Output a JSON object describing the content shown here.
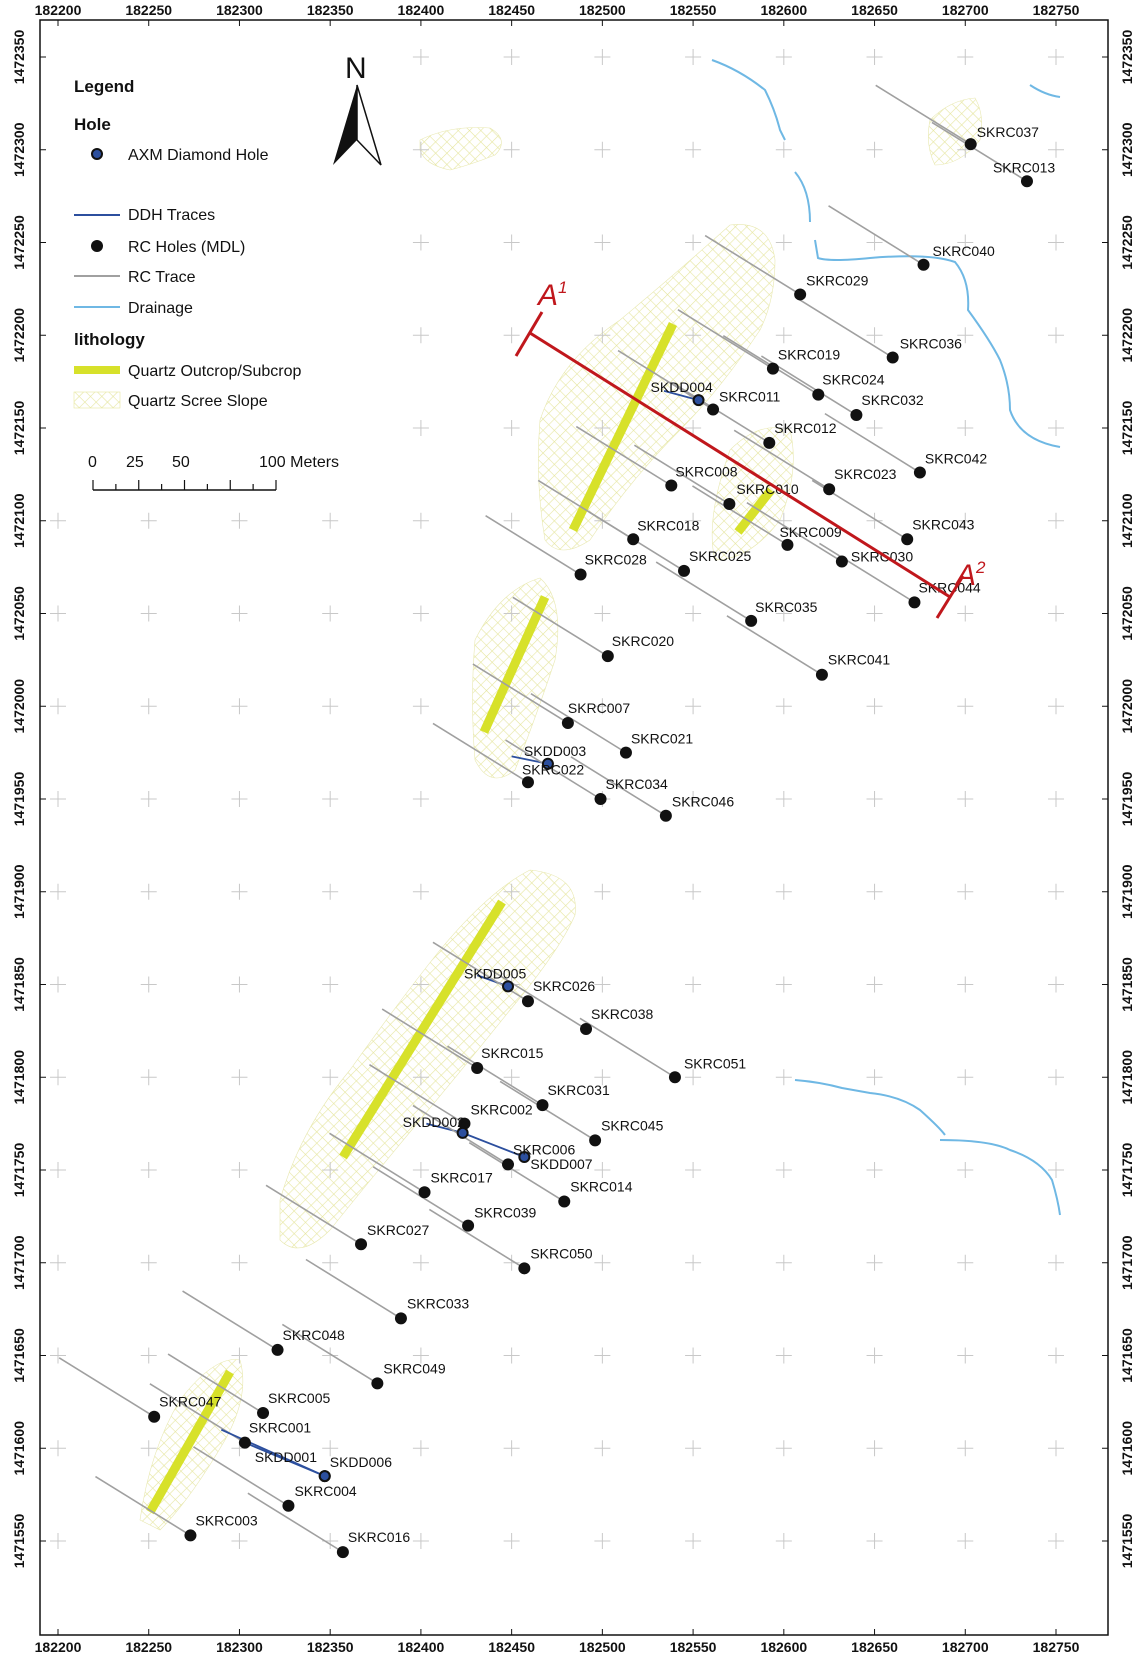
{
  "colors": {
    "rc_trace": "#a0a0a0",
    "ddh_trace": "#2c4f9e",
    "drainage": "#6fb8e4",
    "quartz_outcrop": "#d7e12a",
    "quartz_scree": "#e6e6a0",
    "section_line": "#c0171c",
    "hole_fill": "#111111",
    "frame": "#111111"
  },
  "axes": {
    "x_ticks": [
      "182200",
      "182250",
      "182300",
      "182350",
      "182400",
      "182450",
      "182500",
      "182550",
      "182600",
      "182650",
      "182700",
      "182750"
    ],
    "y_ticks": [
      "1472350",
      "1472300",
      "1472250",
      "1472200",
      "1472150",
      "1472100",
      "1472050",
      "1472000",
      "1471950",
      "1471900",
      "1471850",
      "1471800",
      "1471750",
      "1471700",
      "1471650",
      "1471600",
      "1471550"
    ]
  },
  "legend": {
    "title": "Legend",
    "hole_heading": "Hole",
    "axm_diamond_hole": "AXM Diamond Hole",
    "ddh_traces": "DDH Traces",
    "rc_holes": "RC Holes (MDL)",
    "rc_trace": "RC Trace",
    "drainage": "Drainage",
    "lithology_heading": "lithology",
    "quartz_outcrop": "Quartz Outcrop/Subcrop",
    "quartz_scree": "Quartz Scree Slope"
  },
  "scale_bar": {
    "labels": [
      "0",
      "25",
      "50",
      "100 Meters"
    ]
  },
  "north_arrow": {
    "label": "N",
    "icon": "north-arrow-icon"
  },
  "section": {
    "start_label": "A",
    "start_sup": "1",
    "end_label": "A",
    "end_sup": "2"
  },
  "holes": [
    {
      "id": "SKRC037",
      "type": "rc",
      "x": 182703,
      "y": 1472303,
      "dx": 6,
      "dy": -7
    },
    {
      "id": "SKRC013",
      "type": "rc",
      "x": 182734,
      "y": 1472283,
      "dx": -34,
      "dy": -9
    },
    {
      "id": "SKRC040",
      "type": "rc",
      "x": 182677,
      "y": 1472238,
      "dx": 9,
      "dy": -9
    },
    {
      "id": "SKRC029",
      "type": "rc",
      "x": 182609,
      "y": 1472222,
      "dx": 6,
      "dy": -9
    },
    {
      "id": "SKRC036",
      "type": "rc",
      "x": 182660,
      "y": 1472188,
      "dx": 7,
      "dy": -9
    },
    {
      "id": "SKRC019",
      "type": "rc",
      "x": 182594,
      "y": 1472182,
      "dx": 5,
      "dy": -9
    },
    {
      "id": "SKRC024",
      "type": "rc",
      "x": 182619,
      "y": 1472168,
      "dx": 4,
      "dy": -10
    },
    {
      "id": "SKRC032",
      "type": "rc",
      "x": 182640,
      "y": 1472157,
      "dx": 5,
      "dy": -10
    },
    {
      "id": "SKDD004",
      "type": "dd",
      "x": 182553,
      "y": 1472165,
      "dx": -48,
      "dy": -8,
      "tx": 182534,
      "ty": 1472170
    },
    {
      "id": "SKRC011",
      "type": "rc",
      "x": 182561,
      "y": 1472160,
      "dx": 6,
      "dy": -8
    },
    {
      "id": "SKRC012",
      "type": "rc",
      "x": 182592,
      "y": 1472142,
      "dx": 5,
      "dy": -10
    },
    {
      "id": "SKRC042",
      "type": "rc",
      "x": 182675,
      "y": 1472126,
      "dx": 5,
      "dy": -9
    },
    {
      "id": "SKRC008",
      "type": "rc",
      "x": 182538,
      "y": 1472119,
      "dx": 4,
      "dy": -9
    },
    {
      "id": "SKRC010",
      "type": "rc",
      "x": 182570,
      "y": 1472109,
      "dx": 7,
      "dy": -10
    },
    {
      "id": "SKRC023",
      "type": "rc",
      "x": 182625,
      "y": 1472117,
      "dx": 5,
      "dy": -10
    },
    {
      "id": "SKRC018",
      "type": "rc",
      "x": 182517,
      "y": 1472090,
      "dx": 4,
      "dy": -9
    },
    {
      "id": "SKRC009",
      "type": "rc",
      "x": 182602,
      "y": 1472087,
      "dx": -8,
      "dy": -8
    },
    {
      "id": "SKRC043",
      "type": "rc",
      "x": 182668,
      "y": 1472090,
      "dx": 5,
      "dy": -10
    },
    {
      "id": "SKRC030",
      "type": "rc",
      "x": 182632,
      "y": 1472078,
      "dx": 9,
      "dy": 0
    },
    {
      "id": "SKRC028",
      "type": "rc",
      "x": 182488,
      "y": 1472071,
      "dx": 4,
      "dy": -10
    },
    {
      "id": "SKRC025",
      "type": "rc",
      "x": 182545,
      "y": 1472073,
      "dx": 5,
      "dy": -10
    },
    {
      "id": "SKRC044",
      "type": "rc",
      "x": 182672,
      "y": 1472056,
      "dx": 4,
      "dy": -10
    },
    {
      "id": "SKRC035",
      "type": "rc",
      "x": 182582,
      "y": 1472046,
      "dx": 4,
      "dy": -9
    },
    {
      "id": "SKRC020",
      "type": "rc",
      "x": 182503,
      "y": 1472027,
      "dx": 4,
      "dy": -10
    },
    {
      "id": "SKRC041",
      "type": "rc",
      "x": 182621,
      "y": 1472017,
      "dx": 6,
      "dy": -10
    },
    {
      "id": "SKRC007",
      "type": "rc",
      "x": 182481,
      "y": 1471991,
      "dx": 0,
      "dy": -10
    },
    {
      "id": "SKRC021",
      "type": "rc",
      "x": 182513,
      "y": 1471975,
      "dx": 5,
      "dy": -9
    },
    {
      "id": "SKDD003",
      "type": "dd",
      "x": 182470,
      "y": 1471969,
      "dx": -24,
      "dy": -8,
      "tx": 182450,
      "ty": 1471973
    },
    {
      "id": "SKRC022",
      "type": "rc",
      "x": 182459,
      "y": 1471959,
      "dx": -6,
      "dy": -8
    },
    {
      "id": "SKRC034",
      "type": "rc",
      "x": 182499,
      "y": 1471950,
      "dx": 5,
      "dy": -10
    },
    {
      "id": "SKRC046",
      "type": "rc",
      "x": 182535,
      "y": 1471941,
      "dx": 6,
      "dy": -9
    },
    {
      "id": "SKDD005",
      "type": "dd",
      "x": 182448,
      "y": 1471849,
      "dx": -44,
      "dy": -8,
      "tx": 182431,
      "ty": 1471855
    },
    {
      "id": "SKRC026",
      "type": "rc",
      "x": 182459,
      "y": 1471841,
      "dx": 5,
      "dy": -10
    },
    {
      "id": "SKRC038",
      "type": "rc",
      "x": 182491,
      "y": 1471826,
      "dx": 5,
      "dy": -10
    },
    {
      "id": "SKRC015",
      "type": "rc",
      "x": 182431,
      "y": 1471805,
      "dx": 4,
      "dy": -10
    },
    {
      "id": "SKRC051",
      "type": "rc",
      "x": 182540,
      "y": 1471800,
      "dx": 9,
      "dy": -9
    },
    {
      "id": "SKRC031",
      "type": "rc",
      "x": 182467,
      "y": 1471785,
      "dx": 5,
      "dy": -10
    },
    {
      "id": "SKRC002",
      "type": "rc",
      "x": 182424,
      "y": 1471775,
      "dx": 6,
      "dy": -9
    },
    {
      "id": "SKDD002",
      "type": "dd",
      "x": 182423,
      "y": 1471770,
      "dx": -60,
      "dy": -6,
      "tx": 182403,
      "ty": 1471775
    },
    {
      "id": "SKRC045",
      "type": "rc",
      "x": 182496,
      "y": 1471766,
      "dx": 6,
      "dy": -10
    },
    {
      "id": "SKDD007",
      "type": "dd",
      "x": 182457,
      "y": 1471757,
      "dx": 6,
      "dy": 12,
      "tx": 182423,
      "ty": 1471770
    },
    {
      "id": "SKRC006",
      "type": "rc",
      "x": 182448,
      "y": 1471753,
      "dx": 5,
      "dy": -10
    },
    {
      "id": "SKRC017",
      "type": "rc",
      "x": 182402,
      "y": 1471738,
      "dx": 6,
      "dy": -10
    },
    {
      "id": "SKRC014",
      "type": "rc",
      "x": 182479,
      "y": 1471733,
      "dx": 6,
      "dy": -10
    },
    {
      "id": "SKRC039",
      "type": "rc",
      "x": 182426,
      "y": 1471720,
      "dx": 6,
      "dy": -8
    },
    {
      "id": "SKRC027",
      "type": "rc",
      "x": 182367,
      "y": 1471710,
      "dx": 6,
      "dy": -9
    },
    {
      "id": "SKRC050",
      "type": "rc",
      "x": 182457,
      "y": 1471697,
      "dx": 6,
      "dy": -10
    },
    {
      "id": "SKRC033",
      "type": "rc",
      "x": 182389,
      "y": 1471670,
      "dx": 6,
      "dy": -10
    },
    {
      "id": "SKRC048",
      "type": "rc",
      "x": 182321,
      "y": 1471653,
      "dx": 5,
      "dy": -10
    },
    {
      "id": "SKRC049",
      "type": "rc",
      "x": 182376,
      "y": 1471635,
      "dx": 6,
      "dy": -10
    },
    {
      "id": "SKRC047",
      "type": "rc",
      "x": 182253,
      "y": 1471617,
      "dx": 5,
      "dy": -10
    },
    {
      "id": "SKRC005",
      "type": "rc",
      "x": 182313,
      "y": 1471619,
      "dx": 5,
      "dy": -10
    },
    {
      "id": "SKRC001",
      "type": "rc",
      "x": 182303,
      "y": 1471603,
      "dx": 4,
      "dy": -10
    },
    {
      "id": "SKDD001",
      "type": "dd",
      "x": 182347,
      "y": 1471585,
      "dx": -70,
      "dy": -14,
      "tx": 182290,
      "ty": 1471610
    },
    {
      "id": "SKDD006",
      "type": "dd",
      "x": 182347,
      "y": 1471585,
      "dx": 5,
      "dy": -9,
      "tx": 182303,
      "ty": 1471603
    },
    {
      "id": "SKRC004",
      "type": "rc",
      "x": 182327,
      "y": 1471569,
      "dx": 6,
      "dy": -10
    },
    {
      "id": "SKRC003",
      "type": "rc",
      "x": 182273,
      "y": 1471553,
      "dx": 5,
      "dy": -10
    },
    {
      "id": "SKRC016",
      "type": "rc",
      "x": 182357,
      "y": 1471544,
      "dx": 5,
      "dy": -10
    }
  ]
}
